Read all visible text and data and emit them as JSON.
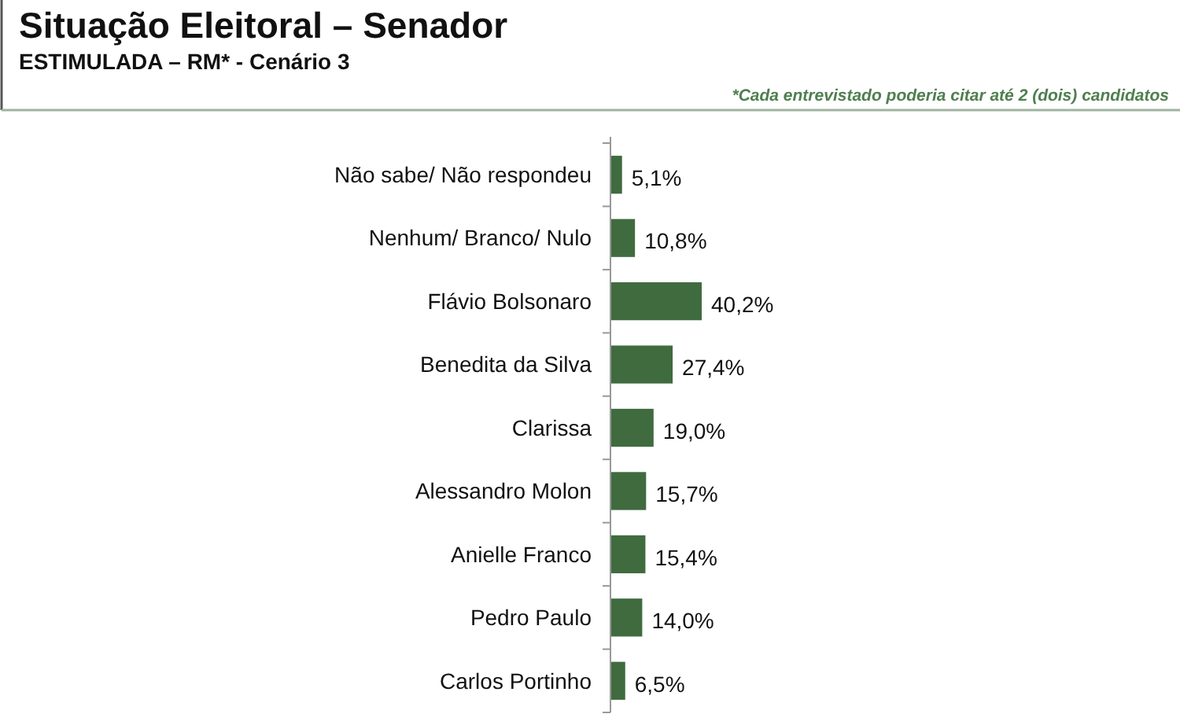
{
  "chart_data": {
    "type": "bar",
    "orientation": "horizontal",
    "title": "Situação Eleitoral – Senador",
    "subtitle": "ESTIMULADA – RM* - Cenário 3",
    "annotations": [
      "*Cada entrevistado poderia citar até 2 (dois) candidatos"
    ],
    "categories": [
      "Não sabe/ Não respondeu",
      "Nenhum/ Branco/ Nulo",
      "Flávio Bolsonaro",
      "Benedita da Silva",
      "Clarissa",
      "Alessandro Molon",
      "Anielle Franco",
      "Pedro Paulo",
      "Carlos Portinho"
    ],
    "values": [
      5.1,
      10.8,
      40.2,
      27.4,
      19.0,
      15.7,
      15.4,
      14.0,
      6.5
    ],
    "value_labels": [
      "5,1%",
      "10,8%",
      "40,2%",
      "27,4%",
      "19,0%",
      "15,7%",
      "15,4%",
      "14,0%",
      "6,5%"
    ],
    "color": "#3f6b3f"
  }
}
